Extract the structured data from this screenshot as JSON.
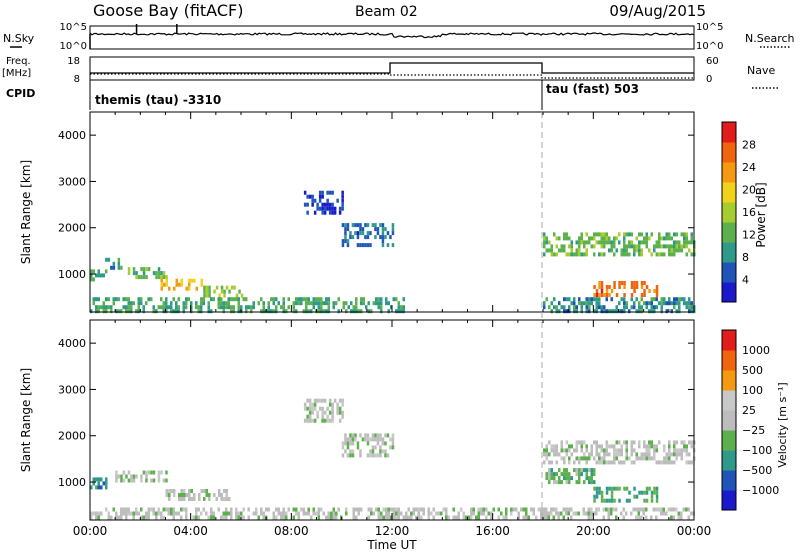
{
  "header": {
    "site_title": "Goose Bay (fitACF)",
    "beam": "Beam 02",
    "date": "09/Aug/2015"
  },
  "top_panels": {
    "nsky_label": "N.Sky",
    "nsky_ticks": [
      "10^5",
      "10^0"
    ],
    "nsearch_label": "N.Search",
    "nsearch_ticks": [
      "10^5",
      "10^0"
    ],
    "freq_label": "Freq.",
    "freq_unit": "[MHz]",
    "freq_ticks": [
      "18",
      "8"
    ],
    "nave_label": "Nave",
    "nave_ticks": [
      "60",
      "0"
    ],
    "cpid_label": "CPID",
    "cpid_segments": [
      {
        "text": "themis (tau) -3310",
        "start_hour": 0
      },
      {
        "text": "tau (fast) 503",
        "start_hour": 18
      }
    ]
  },
  "x_axis": {
    "label": "Time UT",
    "ticks": [
      "00:00",
      "04:00",
      "08:00",
      "12:00",
      "16:00",
      "20:00",
      "00:00"
    ],
    "range_hours": [
      0,
      24
    ]
  },
  "chart_data": [
    {
      "type": "heatmap",
      "title": "",
      "ylabel": "Slant Range [km]",
      "y_ticks": [
        "1000",
        "2000",
        "3000",
        "4000"
      ],
      "ylim": [
        180,
        4500
      ],
      "colorbar_label": "Power [dB]",
      "colorbar_ticks": [
        "4",
        "8",
        "12",
        "16",
        "20",
        "24",
        "28"
      ],
      "colorbar_range": [
        0,
        30
      ],
      "colors": [
        "#1a1acc",
        "#1f55b8",
        "#2f9a8a",
        "#5cb14d",
        "#a7cc2e",
        "#f0d21a",
        "#f39a10",
        "#f0640f",
        "#e11d1a"
      ],
      "features": [
        {
          "hours": [
            0.0,
            0.6
          ],
          "range_km": [
            900,
            1100
          ],
          "value": 10
        },
        {
          "hours": [
            0.6,
            1.2
          ],
          "range_km": [
            1150,
            1350
          ],
          "value": 8
        },
        {
          "hours": [
            1.5,
            3.0
          ],
          "range_km": [
            950,
            1150
          ],
          "value": 12
        },
        {
          "hours": [
            2.8,
            4.5
          ],
          "range_km": [
            700,
            900
          ],
          "value": 20
        },
        {
          "hours": [
            4.5,
            6.0
          ],
          "range_km": [
            550,
            750
          ],
          "value": 14
        },
        {
          "hours": [
            0.0,
            12.5
          ],
          "range_km": [
            200,
            500
          ],
          "value": 10
        },
        {
          "hours": [
            8.5,
            10.0
          ],
          "range_km": [
            2300,
            2800
          ],
          "value": 4
        },
        {
          "hours": [
            10.0,
            12.0
          ],
          "range_km": [
            1600,
            2100
          ],
          "value": 6
        },
        {
          "hours": [
            18.0,
            24.0
          ],
          "range_km": [
            1400,
            1900
          ],
          "value": 12
        },
        {
          "hours": [
            20.0,
            22.5
          ],
          "range_km": [
            550,
            850
          ],
          "value": 24
        },
        {
          "hours": [
            18.0,
            24.0
          ],
          "range_km": [
            200,
            500
          ],
          "value": 8
        }
      ]
    },
    {
      "type": "heatmap",
      "title": "",
      "ylabel": "Slant Range [km]",
      "y_ticks": [
        "1000",
        "2000",
        "3000",
        "4000"
      ],
      "ylim": [
        180,
        4500
      ],
      "colorbar_label": "Velocity [m s⁻¹]",
      "colorbar_ticks": [
        "1000",
        "500",
        "100",
        "25",
        "−25",
        "−100",
        "−500",
        "−1000"
      ],
      "colorbar_range": [
        -1200,
        1200
      ],
      "colors": [
        "#1a1acc",
        "#1f55b8",
        "#2f9a8a",
        "#5cb14d",
        "#bdbdbd",
        "#c8c8c8",
        "#f39a10",
        "#f0640f",
        "#e11d1a"
      ],
      "features": [
        {
          "hours": [
            0.0,
            0.6
          ],
          "range_km": [
            850,
            1100
          ],
          "value": -600
        },
        {
          "hours": [
            1.0,
            3.0
          ],
          "range_km": [
            1050,
            1250
          ],
          "value": 0
        },
        {
          "hours": [
            3.0,
            5.5
          ],
          "range_km": [
            650,
            850
          ],
          "value": 0
        },
        {
          "hours": [
            8.5,
            10.0
          ],
          "range_km": [
            2300,
            2800
          ],
          "value": 0
        },
        {
          "hours": [
            10.0,
            12.0
          ],
          "range_km": [
            1550,
            2050
          ],
          "value": 0
        },
        {
          "hours": [
            18.0,
            24.0
          ],
          "range_km": [
            1400,
            1900
          ],
          "value": 0
        },
        {
          "hours": [
            18.0,
            20.0
          ],
          "range_km": [
            1000,
            1300
          ],
          "value": -300
        },
        {
          "hours": [
            20.0,
            22.5
          ],
          "range_km": [
            600,
            900
          ],
          "value": -400
        },
        {
          "hours": [
            0.0,
            24.0
          ],
          "range_km": [
            200,
            450
          ],
          "value": 0
        }
      ]
    }
  ]
}
